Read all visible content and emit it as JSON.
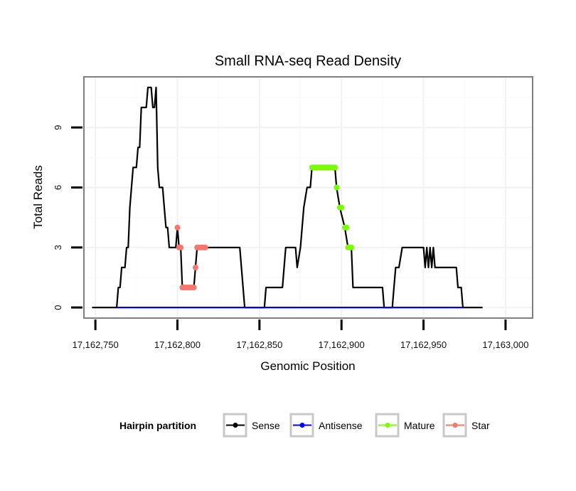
{
  "chart_data": {
    "type": "line",
    "title": "Small RNA-seq Read Density",
    "xlabel": "Genomic Position",
    "ylabel": "Total Reads",
    "xlim": [
      17162743,
      17163016.5
    ],
    "ylim": [
      -0.53,
      11.53
    ],
    "x_ticks": [
      17162750,
      17162800,
      17162850,
      17162900,
      17162950,
      17163000
    ],
    "x_tick_labels": [
      "17,162,750",
      "17,162,800",
      "17,162,850",
      "17,162,900",
      "17,162,950",
      "17,163,000"
    ],
    "y_ticks": [
      0,
      3,
      6,
      9
    ],
    "y_tick_labels": [
      "0",
      "3",
      "6",
      "9"
    ],
    "grid": true,
    "legend": {
      "title": "Hairpin partition",
      "placement": "bottom",
      "entries": [
        {
          "name": "Sense",
          "color": "#000000"
        },
        {
          "name": "Antisense",
          "color": "#0000ff"
        },
        {
          "name": "Mature",
          "color": "#7cfc00"
        },
        {
          "name": "Star",
          "color": "#f8766d"
        }
      ]
    },
    "series": [
      {
        "name": "Sense",
        "color": "#000000",
        "markers": false,
        "points": [
          [
            17162748,
            0
          ],
          [
            17162763,
            0
          ],
          [
            17162764,
            1
          ],
          [
            17162765,
            1
          ],
          [
            17162766,
            2
          ],
          [
            17162768,
            2
          ],
          [
            17162769,
            3
          ],
          [
            17162770,
            3
          ],
          [
            17162771,
            5
          ],
          [
            17162772,
            6
          ],
          [
            17162773,
            7
          ],
          [
            17162775,
            7
          ],
          [
            17162776,
            8
          ],
          [
            17162777,
            8
          ],
          [
            17162778,
            10
          ],
          [
            17162781,
            10
          ],
          [
            17162782,
            11
          ],
          [
            17162784,
            11
          ],
          [
            17162785,
            10
          ],
          [
            17162786,
            10
          ],
          [
            17162787,
            11
          ],
          [
            17162788,
            7
          ],
          [
            17162789,
            6
          ],
          [
            17162791,
            6
          ],
          [
            17162792,
            5
          ],
          [
            17162793,
            4
          ],
          [
            17162794,
            4
          ],
          [
            17162795,
            3
          ],
          [
            17162799,
            3
          ],
          [
            17162800,
            4
          ],
          [
            17162801,
            3
          ],
          [
            17162802,
            3
          ],
          [
            17162803,
            1
          ],
          [
            17162810,
            1
          ],
          [
            17162811,
            2
          ],
          [
            17162812,
            3
          ],
          [
            17162838,
            3
          ],
          [
            17162839,
            2
          ],
          [
            17162840,
            1
          ],
          [
            17162841,
            0
          ],
          [
            17162853,
            0
          ],
          [
            17162854,
            1
          ],
          [
            17162864,
            1
          ],
          [
            17162866,
            3
          ],
          [
            17162872,
            3
          ],
          [
            17162873,
            2
          ],
          [
            17162875,
            3
          ],
          [
            17162877,
            5
          ],
          [
            17162879,
            6
          ],
          [
            17162881,
            6
          ],
          [
            17162882,
            7
          ],
          [
            17162896,
            7
          ],
          [
            17162897,
            6
          ],
          [
            17162899,
            5
          ],
          [
            17162902,
            4
          ],
          [
            17162904,
            3
          ],
          [
            17162906,
            3
          ],
          [
            17162907,
            1
          ],
          [
            17162925,
            1
          ],
          [
            17162926,
            0
          ],
          [
            17162931,
            0
          ],
          [
            17162932,
            1
          ],
          [
            17162933,
            2
          ],
          [
            17162935,
            2
          ],
          [
            17162937,
            3
          ],
          [
            17162950,
            3
          ],
          [
            17162951,
            2
          ],
          [
            17162952,
            3
          ],
          [
            17162953,
            2
          ],
          [
            17162954,
            3
          ],
          [
            17162955,
            2
          ],
          [
            17162956,
            3
          ],
          [
            17162957,
            2
          ],
          [
            17162970,
            2
          ],
          [
            17162971,
            1
          ],
          [
            17162973,
            1
          ],
          [
            17162974,
            0
          ],
          [
            17162986,
            0
          ]
        ]
      },
      {
        "name": "Antisense",
        "color": "#0000ff",
        "markers": false,
        "points": [
          [
            17162763,
            0
          ],
          [
            17162974,
            0
          ]
        ]
      },
      {
        "name": "Mature",
        "color": "#7cfc00",
        "markers": true,
        "points": [
          [
            17162882,
            7
          ],
          [
            17162883,
            7
          ],
          [
            17162884,
            7
          ],
          [
            17162885,
            7
          ],
          [
            17162886,
            7
          ],
          [
            17162887,
            7
          ],
          [
            17162888,
            7
          ],
          [
            17162889,
            7
          ],
          [
            17162890,
            7
          ],
          [
            17162891,
            7
          ],
          [
            17162892,
            7
          ],
          [
            17162893,
            7
          ],
          [
            17162894,
            7
          ],
          [
            17162895,
            7
          ],
          [
            17162896,
            7
          ],
          [
            17162897,
            6
          ],
          [
            17162899,
            5
          ],
          [
            17162900,
            5
          ],
          [
            17162902,
            4
          ],
          [
            17162903,
            4
          ],
          [
            17162904,
            3
          ],
          [
            17162905,
            3
          ],
          [
            17162906,
            3
          ]
        ]
      },
      {
        "name": "Star",
        "color": "#f8766d",
        "markers": true,
        "points": [
          [
            17162800,
            4
          ],
          [
            17162801,
            3
          ],
          [
            17162802,
            3
          ],
          [
            17162803,
            1
          ],
          [
            17162804,
            1
          ],
          [
            17162805,
            1
          ],
          [
            17162806,
            1
          ],
          [
            17162807,
            1
          ],
          [
            17162808,
            1
          ],
          [
            17162809,
            1
          ],
          [
            17162810,
            1
          ],
          [
            17162811,
            2
          ],
          [
            17162812,
            3
          ],
          [
            17162813,
            3
          ],
          [
            17162814,
            3
          ],
          [
            17162815,
            3
          ],
          [
            17162816,
            3
          ],
          [
            17162817,
            3
          ]
        ]
      }
    ]
  }
}
